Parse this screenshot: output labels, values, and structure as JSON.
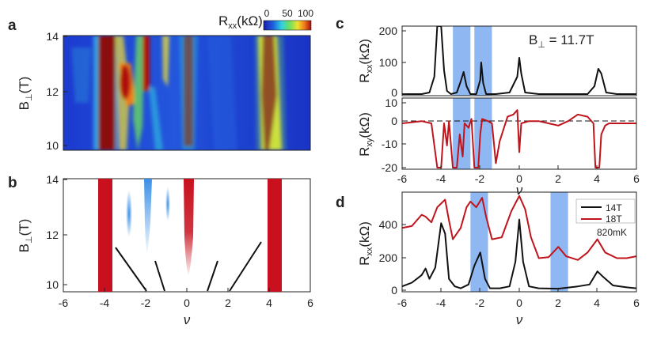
{
  "figure": {
    "panels": {
      "a": {
        "label": "a",
        "ylabel": "B",
        "ylabel_sub": "⊥",
        "ylabel_unit": "(T)",
        "yticks": [
          "14",
          "12",
          "10"
        ],
        "colorbar": {
          "label": "R",
          "label_sub": "xx",
          "label_unit": "(kΩ)",
          "ticks": [
            "0",
            "50",
            "100"
          ]
        }
      },
      "b": {
        "label": "b",
        "ylabel": "B",
        "ylabel_sub": "⊥",
        "ylabel_unit": "(T)",
        "yticks": [
          "14",
          "12",
          "10"
        ],
        "xticks": [
          "-6",
          "-4",
          "-2",
          "0",
          "2",
          "4",
          "6"
        ],
        "xlabel": "ν"
      },
      "c": {
        "label": "c",
        "annotation": "B",
        "annotation_sub": "⊥",
        "annotation_val": " = 11.7T",
        "top_ylabel": "R",
        "top_ylabel_sub": "xx",
        "top_ylabel_unit": "(kΩ)",
        "top_yticks": [
          "200",
          "100",
          "0"
        ],
        "bottom_ylabel": "R",
        "bottom_ylabel_sub": "xy",
        "bottom_ylabel_unit": "(kΩ)",
        "bottom_yticks": [
          "10",
          "0",
          "-10",
          "-20"
        ],
        "xticks": [
          "-6",
          "-4",
          "-2",
          "0",
          "2",
          "4",
          "6"
        ],
        "xlabel": "ν"
      },
      "d": {
        "label": "d",
        "ylabel": "R",
        "ylabel_sub": "xx",
        "ylabel_unit": "(kΩ)",
        "yticks": [
          "400",
          "200",
          "0"
        ],
        "xticks": [
          "-6",
          "-4",
          "-2",
          "0",
          "2",
          "4",
          "6"
        ],
        "xlabel": "ν",
        "legend": [
          "14T",
          "18T"
        ],
        "legend_note": "820mK"
      }
    },
    "colors": {
      "red_line": "#c0141c",
      "black_line": "#111111",
      "shade": "#8fb8f2",
      "bar_red": "#c8101e",
      "blob_blue": "#3a8fe6",
      "map_bg": "#1f3fd0"
    }
  },
  "chart_data": [
    {
      "type": "line",
      "panel": "c-top",
      "xlabel": "ν",
      "ylabel": "Rxx(kΩ)",
      "xlim": [
        -6,
        6
      ],
      "ylim": [
        0,
        220
      ],
      "shaded_x": [
        [
          -3.4,
          -2.5
        ],
        [
          -2.3,
          -1.4
        ]
      ],
      "series": [
        {
          "color": "#111111",
          "points": [
            [
              -6,
              5
            ],
            [
              -5,
              5
            ],
            [
              -4.6,
              10
            ],
            [
              -4.35,
              60
            ],
            [
              -4.2,
              220
            ],
            [
              -4.0,
              220
            ],
            [
              -3.85,
              80
            ],
            [
              -3.7,
              15
            ],
            [
              -3.5,
              5
            ],
            [
              -3.2,
              10
            ],
            [
              -3.0,
              45
            ],
            [
              -2.85,
              75
            ],
            [
              -2.7,
              30
            ],
            [
              -2.5,
              5
            ],
            [
              -2.2,
              5
            ],
            [
              -2.0,
              50
            ],
            [
              -1.95,
              105
            ],
            [
              -1.85,
              40
            ],
            [
              -1.7,
              5
            ],
            [
              -1.2,
              5
            ],
            [
              -0.5,
              10
            ],
            [
              -0.1,
              60
            ],
            [
              0.0,
              120
            ],
            [
              0.1,
              70
            ],
            [
              0.3,
              10
            ],
            [
              1.0,
              5
            ],
            [
              2.5,
              5
            ],
            [
              3.5,
              5
            ],
            [
              3.85,
              30
            ],
            [
              4.05,
              85
            ],
            [
              4.2,
              70
            ],
            [
              4.45,
              10
            ],
            [
              5,
              5
            ],
            [
              6,
              5
            ]
          ]
        }
      ]
    },
    {
      "type": "line",
      "panel": "c-bottom",
      "xlabel": "ν",
      "ylabel": "Rxy(kΩ)",
      "xlim": [
        -6,
        6
      ],
      "ylim": [
        -20,
        10
      ],
      "shaded_x": [
        [
          -3.4,
          -2.5
        ],
        [
          -2.3,
          -1.4
        ]
      ],
      "dashed_y": 0,
      "series": [
        {
          "color": "#c0141c",
          "points": [
            [
              -6,
              0
            ],
            [
              -5,
              1
            ],
            [
              -4.5,
              0
            ],
            [
              -4.2,
              -20
            ],
            [
              -4.0,
              -20
            ],
            [
              -3.85,
              0
            ],
            [
              -3.7,
              -10
            ],
            [
              -3.6,
              1
            ],
            [
              -3.4,
              -20
            ],
            [
              -3.2,
              -20
            ],
            [
              -3.05,
              -5
            ],
            [
              -2.9,
              -15
            ],
            [
              -2.8,
              0
            ],
            [
              -2.6,
              -2
            ],
            [
              -2.45,
              2
            ],
            [
              -2.3,
              -20
            ],
            [
              -2.1,
              -20
            ],
            [
              -2.0,
              -5
            ],
            [
              -1.9,
              2
            ],
            [
              -1.6,
              1
            ],
            [
              -1.4,
              0
            ],
            [
              -1.2,
              -18
            ],
            [
              -1.0,
              -8
            ],
            [
              -0.6,
              3
            ],
            [
              -0.3,
              4
            ],
            [
              -0.1,
              6
            ],
            [
              0.0,
              -13
            ],
            [
              0.1,
              0
            ],
            [
              0.5,
              1
            ],
            [
              1.0,
              1
            ],
            [
              1.5,
              0
            ],
            [
              2.0,
              -1
            ],
            [
              2.5,
              1
            ],
            [
              3.0,
              4
            ],
            [
              3.5,
              3
            ],
            [
              3.8,
              0
            ],
            [
              3.9,
              -20
            ],
            [
              4.1,
              -20
            ],
            [
              4.2,
              -5
            ],
            [
              4.4,
              -1
            ],
            [
              4.6,
              0
            ],
            [
              5,
              0
            ],
            [
              6,
              0
            ]
          ]
        }
      ]
    },
    {
      "type": "line",
      "panel": "d",
      "xlabel": "ν",
      "ylabel": "Rxx(kΩ)",
      "xlim": [
        -6,
        6
      ],
      "ylim": [
        0,
        520
      ],
      "shaded_x": [
        [
          -2.5,
          -1.6
        ],
        [
          1.6,
          2.5
        ]
      ],
      "series": [
        {
          "name": "14T",
          "color": "#111111",
          "points": [
            [
              -6,
              20
            ],
            [
              -5.5,
              40
            ],
            [
              -5.0,
              80
            ],
            [
              -4.8,
              115
            ],
            [
              -4.6,
              60
            ],
            [
              -4.3,
              120
            ],
            [
              -4.0,
              355
            ],
            [
              -3.8,
              300
            ],
            [
              -3.6,
              60
            ],
            [
              -3.3,
              20
            ],
            [
              -3.0,
              10
            ],
            [
              -2.6,
              30
            ],
            [
              -2.3,
              130
            ],
            [
              -2.0,
              200
            ],
            [
              -1.75,
              60
            ],
            [
              -1.5,
              10
            ],
            [
              -1.0,
              10
            ],
            [
              -0.5,
              20
            ],
            [
              -0.2,
              150
            ],
            [
              0.0,
              375
            ],
            [
              0.2,
              150
            ],
            [
              0.5,
              20
            ],
            [
              1.0,
              10
            ],
            [
              2.0,
              8
            ],
            [
              3.0,
              20
            ],
            [
              3.6,
              30
            ],
            [
              4.0,
              100
            ],
            [
              4.3,
              70
            ],
            [
              4.8,
              25
            ],
            [
              5.5,
              15
            ],
            [
              6,
              10
            ]
          ]
        },
        {
          "name": "18T",
          "color": "#c0141c",
          "points": [
            [
              -6,
              330
            ],
            [
              -5.5,
              340
            ],
            [
              -5.0,
              400
            ],
            [
              -4.8,
              390
            ],
            [
              -4.5,
              360
            ],
            [
              -4.2,
              440
            ],
            [
              -3.8,
              480
            ],
            [
              -3.6,
              370
            ],
            [
              -3.4,
              270
            ],
            [
              -3.0,
              330
            ],
            [
              -2.7,
              440
            ],
            [
              -2.5,
              470
            ],
            [
              -2.2,
              440
            ],
            [
              -1.9,
              490
            ],
            [
              -1.7,
              390
            ],
            [
              -1.4,
              270
            ],
            [
              -0.9,
              280
            ],
            [
              -0.4,
              420
            ],
            [
              0.0,
              500
            ],
            [
              0.3,
              430
            ],
            [
              0.6,
              280
            ],
            [
              1.0,
              170
            ],
            [
              1.5,
              175
            ],
            [
              2.0,
              230
            ],
            [
              2.4,
              180
            ],
            [
              3.0,
              160
            ],
            [
              3.5,
              200
            ],
            [
              4.0,
              270
            ],
            [
              4.4,
              200
            ],
            [
              5.0,
              170
            ],
            [
              5.5,
              170
            ],
            [
              6,
              180
            ]
          ]
        }
      ],
      "legend": [
        "14T",
        "18T"
      ]
    }
  ]
}
